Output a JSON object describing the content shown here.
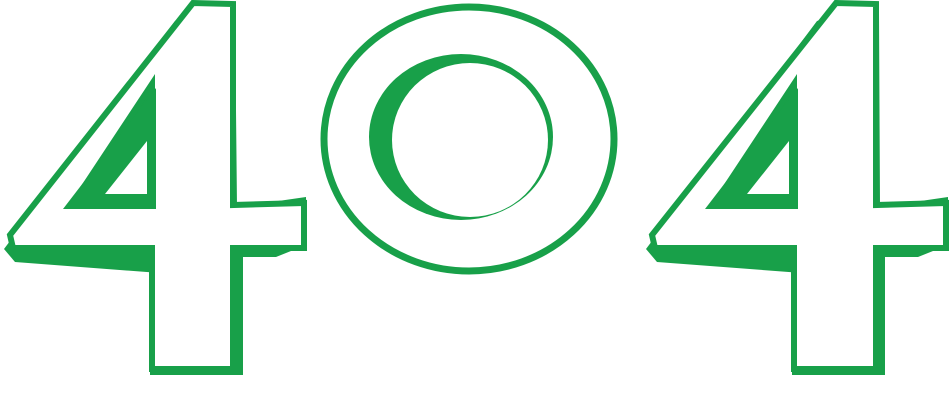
{
  "error": {
    "code": "404",
    "digit_1": "4",
    "digit_2": "0",
    "digit_3": "4"
  },
  "colors": {
    "accent": "#18a049",
    "background": "#ffffff",
    "inner_fill": "#ffffff"
  }
}
